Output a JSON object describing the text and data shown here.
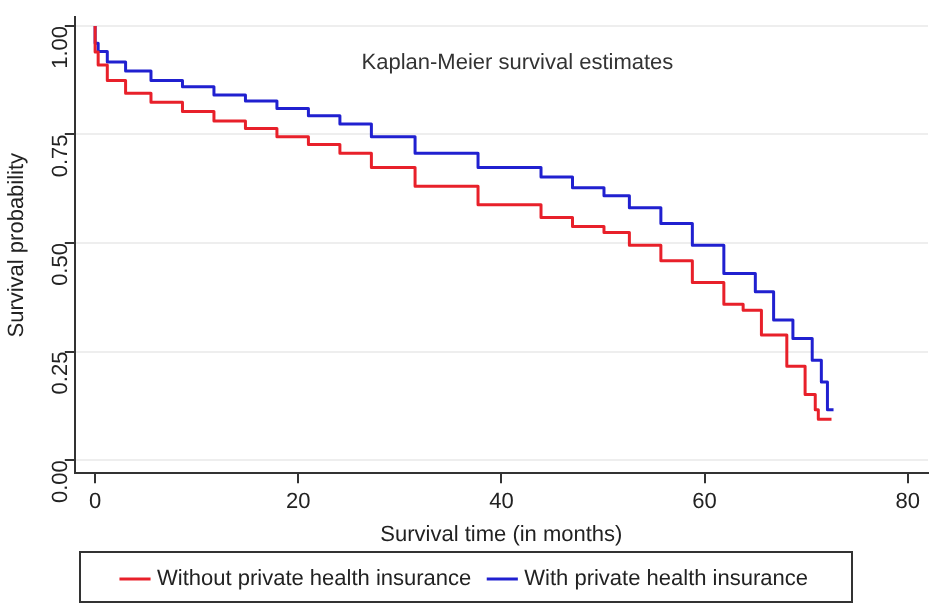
{
  "chart_data": {
    "type": "step",
    "title": "Kaplan-Meier survival estimates",
    "xlabel": "Survival time (in months)",
    "ylabel": "Survival probability",
    "xlim": [
      -2,
      82
    ],
    "xticks": [
      0,
      20,
      40,
      60,
      80
    ],
    "ylim": [
      -0.03,
      1.02
    ],
    "yticks": [
      {
        "value": 0,
        "label": "0.00"
      },
      {
        "value": 0.25,
        "label": "0.25"
      },
      {
        "value": 0.5,
        "label": "0.50"
      },
      {
        "value": 0.75,
        "label": "0.75"
      },
      {
        "value": 1,
        "label": "1.00"
      }
    ],
    "grid": "y",
    "legend": "bottom",
    "marker": "none",
    "line_style": "solid",
    "series": [
      {
        "name": "Without private health insurance",
        "color": "#e8202a",
        "x": [
          0,
          0.3,
          1.2,
          3,
          5.5,
          8.6,
          11.7,
          14.8,
          17.9,
          21,
          24.1,
          27.2,
          31.5,
          37.7,
          43.9,
          47,
          50.1,
          52.6,
          55.7,
          58.8,
          61.9,
          63.8,
          65.6,
          68.1,
          69.9,
          70.9,
          71.2,
          71.9,
          72.5
        ],
        "values": [
          1,
          0.94,
          0.91,
          0.874,
          0.845,
          0.824,
          0.803,
          0.781,
          0.764,
          0.745,
          0.727,
          0.707,
          0.674,
          0.631,
          0.588,
          0.559,
          0.538,
          0.524,
          0.495,
          0.459,
          0.409,
          0.359,
          0.345,
          0.288,
          0.216,
          0.151,
          0.116,
          0.094,
          0.094
        ]
      },
      {
        "name": "With private health insurance",
        "color": "#2020d0",
        "x": [
          0,
          0.3,
          1.2,
          3,
          5.5,
          8.6,
          11.7,
          14.8,
          17.9,
          21,
          24.1,
          27.2,
          31.5,
          37.7,
          43.9,
          47,
          50.1,
          52.6,
          55.7,
          58.8,
          61.9,
          65,
          66.8,
          68.7,
          70.6,
          71.5,
          72.1,
          72.7
        ],
        "values": [
          1,
          0.96,
          0.941,
          0.917,
          0.896,
          0.874,
          0.86,
          0.841,
          0.827,
          0.81,
          0.793,
          0.774,
          0.745,
          0.707,
          0.674,
          0.652,
          0.627,
          0.609,
          0.581,
          0.545,
          0.495,
          0.43,
          0.388,
          0.323,
          0.28,
          0.23,
          0.18,
          0.116
        ]
      }
    ]
  }
}
